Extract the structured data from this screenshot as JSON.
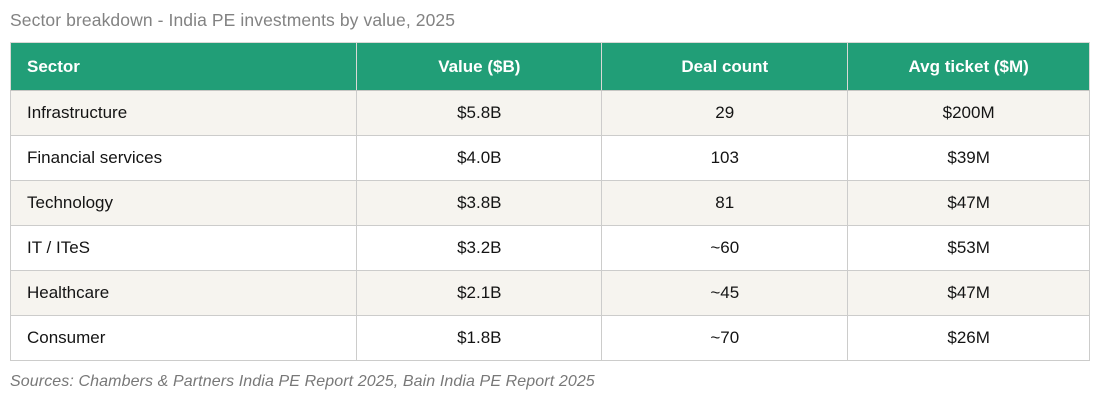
{
  "chart_data": {
    "type": "table",
    "title": "Sector breakdown - India PE investments by value, 2025",
    "columns": [
      "Sector",
      "Value ($B)",
      "Deal count",
      "Avg ticket ($M)"
    ],
    "rows": [
      [
        "Infrastructure",
        "$5.8B",
        "29",
        "$200M"
      ],
      [
        "Financial services",
        "$4.0B",
        "103",
        "$39M"
      ],
      [
        "Technology",
        "$3.8B",
        "81",
        "$47M"
      ],
      [
        "IT / ITeS",
        "$3.2B",
        "~60",
        "$53M"
      ],
      [
        "Healthcare",
        "$2.1B",
        "~45",
        "$47M"
      ],
      [
        "Consumer",
        "$1.8B",
        "~70",
        "$26M"
      ]
    ],
    "values_numeric": {
      "value_bn_usd": [
        5.8,
        4.0,
        3.8,
        3.2,
        2.1,
        1.8
      ],
      "deal_count_approx": [
        29,
        103,
        81,
        60,
        45,
        70
      ],
      "avg_ticket_m_usd": [
        200,
        39,
        47,
        53,
        47,
        26
      ]
    },
    "source": "Sources: Chambers & Partners India PE Report 2025, Bain India PE Report 2025",
    "layout": {
      "zebra_striping": true,
      "header_text_color": "#ffffff",
      "first_column_align": "left",
      "other_columns_align": "center"
    }
  },
  "colors": {
    "header_bg": "#219e77",
    "stripe_row_bg": "#f6f4ef",
    "plain_row_bg": "#ffffff",
    "border": "#c6c6c3",
    "title_text": "#828282",
    "source_text": "#787878",
    "body_text": "#141414"
  }
}
